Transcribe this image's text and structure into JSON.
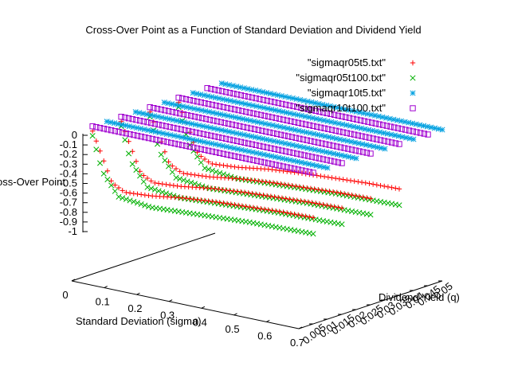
{
  "chart_data": {
    "type": "scatter",
    "title": "Cross-Over Point as a Function of Standard Deviation and Dividend Yield",
    "xlabel": "Standard Deviation (sigma)",
    "ylabel": "Dividend Yield (q)",
    "zlabel": "Cross-Over Point",
    "xlim": [
      0,
      0.7
    ],
    "ylim": [
      0,
      0.05
    ],
    "zlim": [
      -1,
      0
    ],
    "x_ticks": [
      "0",
      "0.1",
      "0.2",
      "0.3",
      "0.4",
      "0.5",
      "0.6",
      "0.7"
    ],
    "y_ticks": [
      "0.005",
      "0.01",
      "0.015",
      "0.02",
      "0.025",
      "0.03",
      "0.035",
      "0.04",
      "0.045",
      "0.05"
    ],
    "z_ticks": [
      "0",
      "-0.1",
      "-0.2",
      "-0.3",
      "-0.4",
      "-0.5",
      "-0.6",
      "-0.7",
      "-0.8",
      "-0.9",
      "-1"
    ],
    "legend_position": "top-right",
    "series": [
      {
        "name": "\"sigmaqr05t5.txt\"",
        "color": "#ff0000",
        "marker": "plus",
        "q": [
          0.005,
          0.015,
          0.025,
          0.035
        ],
        "curve": {
          "sigma": [
            0.02,
            0.05,
            0.08,
            0.12,
            0.2,
            0.3,
            0.4,
            0.5,
            0.6,
            0.7
          ],
          "z": [
            -0.05,
            -0.3,
            -0.55,
            -0.62,
            -0.6,
            -0.55,
            -0.52,
            -0.5,
            -0.48,
            -0.47
          ]
        }
      },
      {
        "name": "\"sigmaqr05t100.txt\"",
        "color": "#00b000",
        "marker": "cross",
        "q": [
          0.005,
          0.015,
          0.025,
          0.035
        ],
        "curve": {
          "sigma": [
            0.02,
            0.05,
            0.1,
            0.2,
            0.3,
            0.4,
            0.5,
            0.6,
            0.7
          ],
          "z": [
            -0.1,
            -0.45,
            -0.68,
            -0.72,
            -0.7,
            -0.68,
            -0.66,
            -0.65,
            -0.64
          ]
        }
      },
      {
        "name": "\"sigmaqr10t5.txt\"",
        "color": "#00a0e0",
        "marker": "star",
        "q": [
          0.01,
          0.02,
          0.03,
          0.04,
          0.05
        ],
        "curve": {
          "sigma": [
            0.02,
            0.7
          ],
          "z": [
            0,
            0
          ]
        }
      },
      {
        "name": "\"sigmaqr10t100.txt\"",
        "color": "#a000d0",
        "marker": "square",
        "q": [
          0.005,
          0.015,
          0.025,
          0.035,
          0.045
        ],
        "curve": {
          "sigma": [
            0.02,
            0.7
          ],
          "z": [
            0,
            0
          ]
        }
      }
    ]
  }
}
